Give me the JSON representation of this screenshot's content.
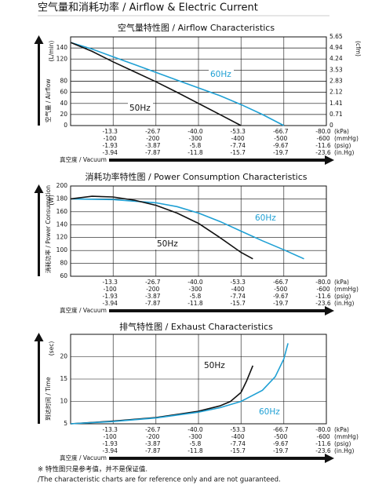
{
  "header": {
    "title": "空气量和消耗功率 / Airflow & Electric Current"
  },
  "chart_data": [
    {
      "type": "line",
      "title": "空气量特性图 / Airflow Characteristics",
      "y_label": "空气量 / Airflow",
      "y_unit": "(L/min)",
      "y2_unit": "(cfm)",
      "x_label": "真空度 / Vacuum",
      "ylim": [
        0,
        160
      ],
      "yticks": [
        0,
        20,
        40,
        60,
        80,
        120,
        140
      ],
      "y2lim": [
        0,
        5.65
      ],
      "y2ticks": [
        0,
        0.71,
        1.41,
        2.12,
        2.83,
        3.53,
        4.24,
        4.94,
        5.65
      ],
      "xlim": [
        0,
        -80
      ],
      "xticks": [
        -13.3,
        -26.7,
        {
          "value": -40,
          "label": "-40.0"
        },
        -53.3,
        -66.7,
        {
          "value": -80,
          "label": "-80.0"
        }
      ],
      "xtick_unit": "(kPa)",
      "x_scales": [
        {
          "unit": "(mmHg)",
          "ticks": [
            -100,
            -200,
            -300,
            -400,
            -500,
            -600
          ]
        },
        {
          "unit": "(psig)",
          "ticks": [
            -1.93,
            -3.87,
            -5.8,
            -7.74,
            -9.67,
            -11.6
          ]
        },
        {
          "unit": "(in.Hg)",
          "ticks": [
            -3.94,
            -7.87,
            -11.8,
            -15.7,
            -19.7,
            -23.6
          ]
        }
      ],
      "grid": true,
      "series": [
        {
          "name": "60Hz",
          "color": "#1fa0d4",
          "x": [
            0,
            -6.7,
            -13.3,
            -20,
            -26.7,
            -33.3,
            -40,
            -46.7,
            -53.3,
            -60,
            -66.7
          ],
          "values": [
            150,
            138,
            124,
            110,
            96,
            82,
            68,
            54,
            38,
            20,
            0
          ]
        },
        {
          "name": "50Hz",
          "color": "#111111",
          "x": [
            0,
            -6.7,
            -13.3,
            -20,
            -26.7,
            -33.3,
            -40,
            -46.7,
            -53.3
          ],
          "values": [
            150,
            134,
            115,
            97,
            79,
            60,
            40,
            20,
            0
          ]
        }
      ]
    },
    {
      "type": "line",
      "title": "消耗功率特性图 / Power Consumption Characteristics",
      "y_label": "消耗功率 / Power Consumption",
      "y_unit": "(W)",
      "x_label": "真空度 / Vacuum",
      "ylim": [
        60,
        200
      ],
      "yticks": [
        60,
        80,
        100,
        120,
        140,
        160,
        180,
        200
      ],
      "xlim": [
        0,
        -80
      ],
      "xticks": [
        -13.3,
        -26.7,
        {
          "value": -40,
          "label": "-40.0"
        },
        -53.3,
        -66.7,
        {
          "value": -80,
          "label": "-80.0"
        }
      ],
      "xtick_unit": "(kPa)",
      "x_scales": [
        {
          "unit": "(mmHg)",
          "ticks": [
            -100,
            -200,
            -300,
            -400,
            -500,
            -600
          ]
        },
        {
          "unit": "(psig)",
          "ticks": [
            -1.93,
            -3.87,
            -5.8,
            -7.74,
            -9.67,
            -11.6
          ]
        },
        {
          "unit": "(in.Hg)",
          "ticks": [
            -3.94,
            -7.87,
            -11.8,
            -15.7,
            -19.7,
            -23.6
          ]
        }
      ],
      "grid": true,
      "series": [
        {
          "name": "60Hz",
          "color": "#1fa0d4",
          "x": [
            0,
            -13.3,
            -26.7,
            -33.3,
            -40,
            -46.7,
            -53.3,
            -60,
            -66.7,
            -73
          ],
          "values": [
            180,
            179,
            174,
            168,
            158,
            145,
            130,
            115,
            101,
            87
          ]
        },
        {
          "name": "50Hz",
          "color": "#111111",
          "x": [
            0,
            -6.7,
            -13.3,
            -20,
            -26.7,
            -33.3,
            -40,
            -46.7,
            -53.3,
            -57
          ],
          "values": [
            180,
            184,
            183,
            178,
            170,
            158,
            142,
            120,
            97,
            87
          ]
        }
      ]
    },
    {
      "type": "line",
      "title": "排气特性图 / Exhaust Characteristics",
      "y_label": "到达时间 / Time",
      "y_unit": "(sec)",
      "x_label": "真空度 / Vacuum",
      "ylim": [
        5,
        25
      ],
      "yticks": [
        5,
        10,
        15,
        20
      ],
      "xlim": [
        0,
        -80
      ],
      "xticks": [
        -13.3,
        -26.7,
        {
          "value": -40,
          "label": "-40.0"
        },
        -53.3,
        -66.7,
        {
          "value": -80,
          "label": "-80.0"
        }
      ],
      "xtick_unit": "(kPa)",
      "x_scales": [
        {
          "unit": "(mmHg)",
          "ticks": [
            -100,
            -200,
            -300,
            -400,
            -500,
            -600
          ]
        },
        {
          "unit": "(psig)",
          "ticks": [
            -1.93,
            -3.87,
            -5.8,
            -7.74,
            -9.67,
            -11.6
          ]
        },
        {
          "unit": "(in.Hg)",
          "ticks": [
            -3.94,
            -7.87,
            -11.8,
            -15.7,
            -19.7,
            -23.6
          ]
        }
      ],
      "grid": true,
      "series": [
        {
          "name": "50Hz",
          "color": "#111111",
          "x": [
            0,
            -13.3,
            -26.7,
            -40,
            -46.7,
            -50,
            -53.3,
            -55,
            -57
          ],
          "values": [
            5,
            5.6,
            6.4,
            7.8,
            9,
            10,
            12,
            14.5,
            18
          ]
        },
        {
          "name": "60Hz",
          "color": "#1fa0d4",
          "x": [
            0,
            -13.3,
            -26.7,
            -40,
            -46.7,
            -53.3,
            -60,
            -64,
            -66.7,
            -68
          ],
          "values": [
            5,
            5.5,
            6.3,
            7.6,
            8.6,
            10,
            12.5,
            15.5,
            19.5,
            23
          ]
        }
      ]
    }
  ],
  "footnote": [
    "※ 特性图只是参考值，并不是保证值.",
    "/The characteristic charts are for reference only and are not guaranteed."
  ]
}
